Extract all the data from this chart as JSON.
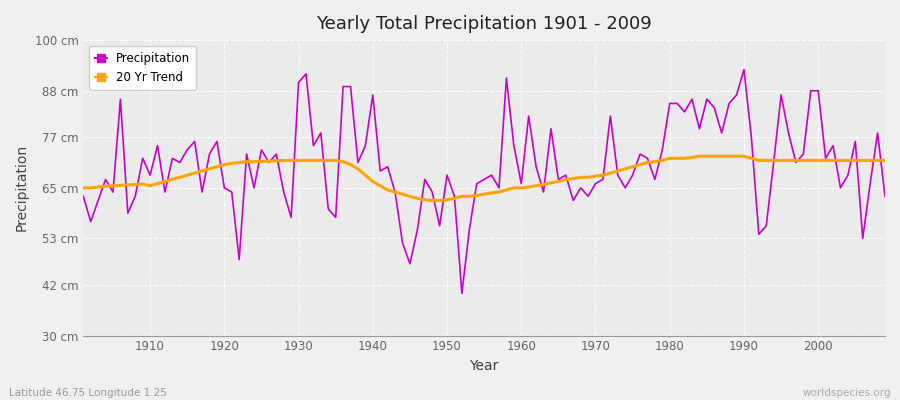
{
  "title": "Yearly Total Precipitation 1901 - 2009",
  "xlabel": "Year",
  "ylabel": "Precipitation",
  "subtitle": "Latitude 46.75 Longitude 1.25",
  "watermark": "worldspecies.org",
  "precipitation_color": "#CC00CC",
  "trend_color": "#FFA500",
  "bg_color": "#F0F0F0",
  "plot_bg_color": "#EBEBEB",
  "ylim": [
    30,
    100
  ],
  "yticks": [
    30,
    42,
    53,
    65,
    77,
    88,
    100
  ],
  "ytick_labels": [
    "30 cm",
    "42 cm",
    "53 cm",
    "65 cm",
    "77 cm",
    "88 cm",
    "100 cm"
  ],
  "years": [
    1901,
    1902,
    1903,
    1904,
    1905,
    1906,
    1907,
    1908,
    1909,
    1910,
    1911,
    1912,
    1913,
    1914,
    1915,
    1916,
    1917,
    1918,
    1919,
    1920,
    1921,
    1922,
    1923,
    1924,
    1925,
    1926,
    1927,
    1928,
    1929,
    1930,
    1931,
    1932,
    1933,
    1934,
    1935,
    1936,
    1937,
    1938,
    1939,
    1940,
    1941,
    1942,
    1943,
    1944,
    1945,
    1946,
    1947,
    1948,
    1949,
    1950,
    1951,
    1952,
    1953,
    1954,
    1955,
    1956,
    1957,
    1958,
    1959,
    1960,
    1961,
    1962,
    1963,
    1964,
    1965,
    1966,
    1967,
    1968,
    1969,
    1970,
    1971,
    1972,
    1973,
    1974,
    1975,
    1976,
    1977,
    1978,
    1979,
    1980,
    1981,
    1982,
    1983,
    1984,
    1985,
    1986,
    1987,
    1988,
    1989,
    1990,
    1991,
    1992,
    1993,
    1994,
    1995,
    1996,
    1997,
    1998,
    1999,
    2000,
    2001,
    2002,
    2003,
    2004,
    2005,
    2006,
    2007,
    2008,
    2009
  ],
  "precipitation": [
    63,
    57,
    62,
    67,
    64,
    86,
    59,
    63,
    72,
    68,
    75,
    64,
    72,
    71,
    74,
    76,
    64,
    73,
    76,
    65,
    64,
    48,
    73,
    65,
    74,
    71,
    73,
    64,
    58,
    90,
    92,
    75,
    78,
    60,
    58,
    89,
    89,
    71,
    75,
    87,
    69,
    70,
    64,
    52,
    47,
    55,
    67,
    64,
    56,
    68,
    63,
    40,
    55,
    66,
    67,
    68,
    65,
    91,
    75,
    66,
    82,
    70,
    64,
    79,
    67,
    68,
    62,
    65,
    63,
    66,
    67,
    82,
    68,
    65,
    68,
    73,
    72,
    67,
    74,
    85,
    85,
    83,
    86,
    79,
    86,
    84,
    78,
    85,
    87,
    93,
    77,
    54,
    56,
    71,
    87,
    78,
    71,
    73,
    88,
    88,
    72,
    75,
    65,
    68,
    76,
    53,
    66,
    78,
    63
  ],
  "trend": [
    65.0,
    65.0,
    65.2,
    65.4,
    65.5,
    65.6,
    65.7,
    65.8,
    65.9,
    65.5,
    66.0,
    66.5,
    67.0,
    67.5,
    68.0,
    68.5,
    69.0,
    69.5,
    70.0,
    70.5,
    70.8,
    71.0,
    71.2,
    71.2,
    71.3,
    71.3,
    71.4,
    71.5,
    71.5,
    71.5,
    71.5,
    71.5,
    71.5,
    71.5,
    71.5,
    71.2,
    70.5,
    69.5,
    68.0,
    66.5,
    65.5,
    64.5,
    64.0,
    63.5,
    63.0,
    62.5,
    62.2,
    62.0,
    62.0,
    62.2,
    62.5,
    63.0,
    63.0,
    63.2,
    63.5,
    63.8,
    64.0,
    64.5,
    65.0,
    65.0,
    65.2,
    65.5,
    65.8,
    66.2,
    66.5,
    67.0,
    67.2,
    67.5,
    67.5,
    67.8,
    68.0,
    68.5,
    69.0,
    69.5,
    70.0,
    70.5,
    71.0,
    71.2,
    71.5,
    72.0,
    72.0,
    72.0,
    72.2,
    72.5,
    72.5,
    72.5,
    72.5,
    72.5,
    72.5,
    72.5,
    72.0,
    71.5,
    71.5,
    71.5,
    71.5,
    71.5,
    71.5,
    71.5,
    71.5,
    71.5,
    71.5,
    71.5,
    71.5,
    71.5,
    71.5,
    71.5,
    71.5,
    71.5,
    71.5
  ]
}
